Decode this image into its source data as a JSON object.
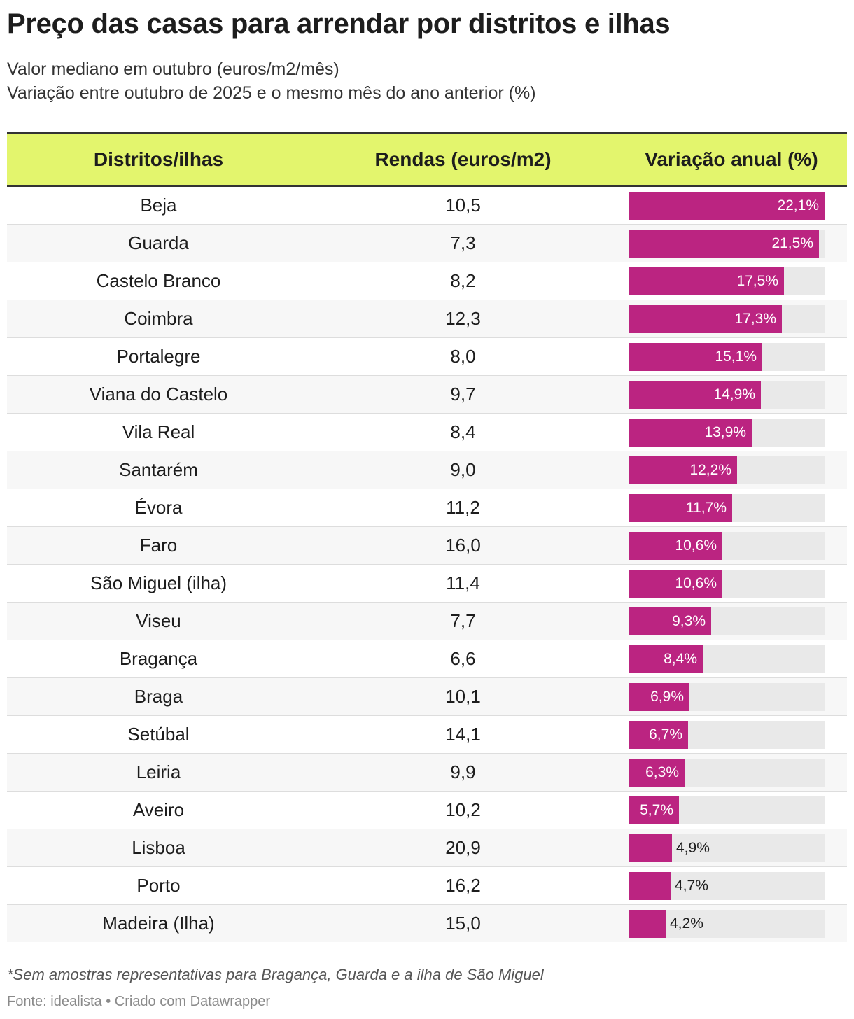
{
  "header": {
    "title": "Preço das casas para arrendar por distritos e ilhas",
    "subtitle_line1": "Valor mediano em outubro (euros/m2/mês)",
    "subtitle_line2": "Variação entre outubro de 2025 e o mesmo mês do ano anterior (%)"
  },
  "colors": {
    "header_bg": "#e3f56d",
    "bar": "#bb2481",
    "bar_bg": "#e9e9e9"
  },
  "chart_data": {
    "type": "table",
    "columns": [
      "Distritos/ilhas",
      "Rendas (euros/m2)",
      "Variação anual (%)"
    ],
    "bar_max": 22.1,
    "rows": [
      {
        "name": "Beja",
        "renda": "10,5",
        "variacao": 22.1,
        "label": "22,1%"
      },
      {
        "name": "Guarda",
        "renda": "7,3",
        "variacao": 21.5,
        "label": "21,5%"
      },
      {
        "name": "Castelo Branco",
        "renda": "8,2",
        "variacao": 17.5,
        "label": "17,5%"
      },
      {
        "name": "Coimbra",
        "renda": "12,3",
        "variacao": 17.3,
        "label": "17,3%"
      },
      {
        "name": "Portalegre",
        "renda": "8,0",
        "variacao": 15.1,
        "label": "15,1%"
      },
      {
        "name": "Viana do Castelo",
        "renda": "9,7",
        "variacao": 14.9,
        "label": "14,9%"
      },
      {
        "name": "Vila Real",
        "renda": "8,4",
        "variacao": 13.9,
        "label": "13,9%"
      },
      {
        "name": "Santarém",
        "renda": "9,0",
        "variacao": 12.2,
        "label": "12,2%"
      },
      {
        "name": "Évora",
        "renda": "11,2",
        "variacao": 11.7,
        "label": "11,7%"
      },
      {
        "name": "Faro",
        "renda": "16,0",
        "variacao": 10.6,
        "label": "10,6%"
      },
      {
        "name": "São Miguel (ilha)",
        "renda": "11,4",
        "variacao": 10.6,
        "label": "10,6%"
      },
      {
        "name": "Viseu",
        "renda": "7,7",
        "variacao": 9.3,
        "label": "9,3%"
      },
      {
        "name": "Bragança",
        "renda": "6,6",
        "variacao": 8.4,
        "label": "8,4%"
      },
      {
        "name": "Braga",
        "renda": "10,1",
        "variacao": 6.9,
        "label": "6,9%"
      },
      {
        "name": "Setúbal",
        "renda": "14,1",
        "variacao": 6.7,
        "label": "6,7%"
      },
      {
        "name": "Leiria",
        "renda": "9,9",
        "variacao": 6.3,
        "label": "6,3%"
      },
      {
        "name": "Aveiro",
        "renda": "10,2",
        "variacao": 5.7,
        "label": "5,7%"
      },
      {
        "name": "Lisboa",
        "renda": "20,9",
        "variacao": 4.9,
        "label": "4,9%"
      },
      {
        "name": "Porto",
        "renda": "16,2",
        "variacao": 4.7,
        "label": "4,7%"
      },
      {
        "name": "Madeira (Ilha)",
        "renda": "15,0",
        "variacao": 4.2,
        "label": "4,2%"
      }
    ]
  },
  "footer": {
    "note": "*Sem amostras representativas para Bragança, Guarda e a ilha de São Miguel",
    "source": "Fonte: idealista • Criado com Datawrapper"
  }
}
